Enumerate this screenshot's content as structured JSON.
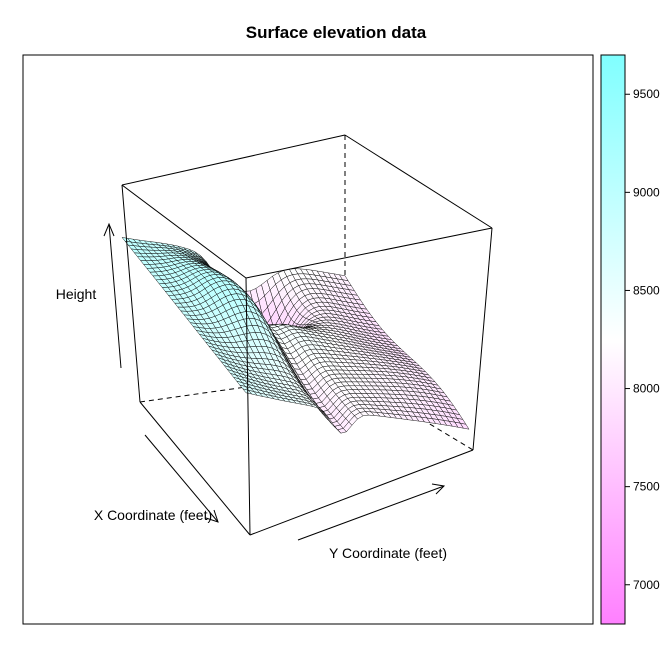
{
  "chart_data": {
    "type": "surface3d",
    "title": "Surface elevation data",
    "xlabel": "X Coordinate (feet)",
    "ylabel": "Y Coordinate (feet)",
    "zlabel": "Height",
    "zlim": [
      6800,
      9700
    ],
    "colorkey": {
      "ticks": [
        7000,
        7500,
        8000,
        8500,
        9000,
        9500
      ],
      "low_color": "#ff80ff",
      "mid_color": "#ffffff",
      "high_color": "#80ffff"
    },
    "corner_heights": {
      "x_min_y_min": 9000,
      "x_max_y_min": 8700,
      "x_min_y_max": 8100,
      "x_max_y_max": 7800
    },
    "grid": false
  }
}
